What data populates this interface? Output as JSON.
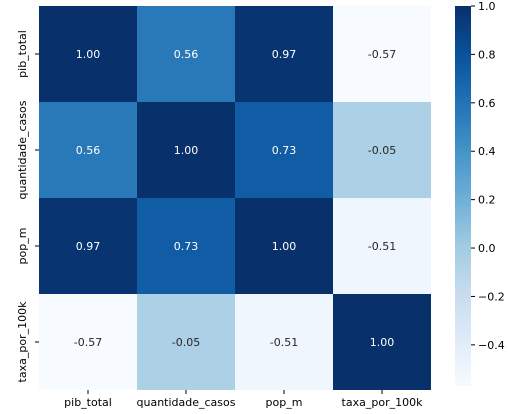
{
  "chart_data": {
    "type": "heatmap",
    "title": "",
    "row_labels": [
      "pib_total",
      "quantidade_casos",
      "pop_m",
      "taxa_por_100k"
    ],
    "col_labels": [
      "pib_total",
      "quantidade_casos",
      "pop_m",
      "taxa_por_100k"
    ],
    "values": [
      [
        1.0,
        0.56,
        0.97,
        -0.57
      ],
      [
        0.56,
        1.0,
        0.73,
        -0.05
      ],
      [
        0.97,
        0.73,
        1.0,
        -0.51
      ],
      [
        -0.57,
        -0.05,
        -0.51,
        1.0
      ]
    ],
    "value_format": "0.00",
    "colormap": "Blues",
    "vmin": -0.57,
    "vmax": 1.0,
    "colorbar": {
      "tick_values": [
        1.0,
        0.8,
        0.6,
        0.4,
        0.2,
        0.0,
        -0.2,
        -0.4
      ],
      "tick_labels": [
        "1.0",
        "0.8",
        "0.6",
        "0.4",
        "0.2",
        "0.0",
        "−0.2",
        "−0.4"
      ]
    },
    "annotation_colors": {
      "dark": "#ffffff",
      "light": "#262626"
    }
  }
}
